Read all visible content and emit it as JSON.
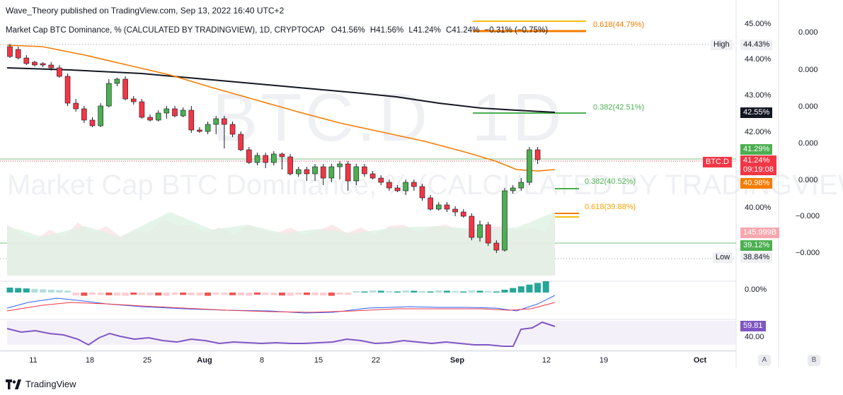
{
  "publish_line": "Wave_Theory published on TradingView.com, Sep 13, 2022 16:40 UTC+2",
  "legend": {
    "title": "Market Cap BTC Dominance, % (CALCULATED BY TRADINGVIEW), 1D, CRYPTOCAP",
    "open": "O41.56%",
    "high": "H41.56%",
    "low": "L41.24%",
    "close": "C41.24%",
    "change": "−0.31% (−0.75%)"
  },
  "watermark": {
    "symbol": "BTC.D",
    "interval": "1D",
    "name": "Market Cap BTC Dominance, % (CALCULATED BY TRADINGVIEW)"
  },
  "price_axis": [
    "45.00%",
    "44.00%",
    "43.00%",
    "42.00%",
    "40.00%"
  ],
  "volume_axis": [
    "0.000",
    "0.000",
    "0.000",
    "0.000",
    "0.000",
    "−0.000",
    "−0.000"
  ],
  "macd_axis": "0.00%",
  "rsi_axis": "40.00",
  "tags": {
    "high_label": "High",
    "high_value": "44.43%",
    "ma200": "42.55%",
    "green_level": "41.29%",
    "symbol": "BTC.D",
    "price": "41.24%",
    "countdown": "09:19:08",
    "ma50": "40.98%",
    "volume": "145.999B",
    "low_level": "39.12%",
    "low_label": "Low",
    "low_value": "38.84%",
    "rsi": "59.81"
  },
  "fib": {
    "top": "0.618(44.79%)",
    "mid_resistance": "0.382(42.51%)",
    "support_382": "0.382(40.52%)",
    "support_618": "0.618(39.88%)"
  },
  "time_axis": [
    "11",
    "18",
    "25",
    "Aug",
    "8",
    "15",
    "22",
    "Sep",
    "12",
    "19",
    "Oct"
  ],
  "footer": {
    "brand": "TradingView",
    "btn_a": "A",
    "btn_b": "B"
  },
  "colors": {
    "up": "#4caf50",
    "down": "#f23645",
    "ma50": "#f57c00",
    "ma200": "#131722",
    "fib_gold": "#f7c10f",
    "fib_orange": "#f57c00",
    "fib_green": "#4caf50",
    "rsi": "#7e57c2"
  }
}
